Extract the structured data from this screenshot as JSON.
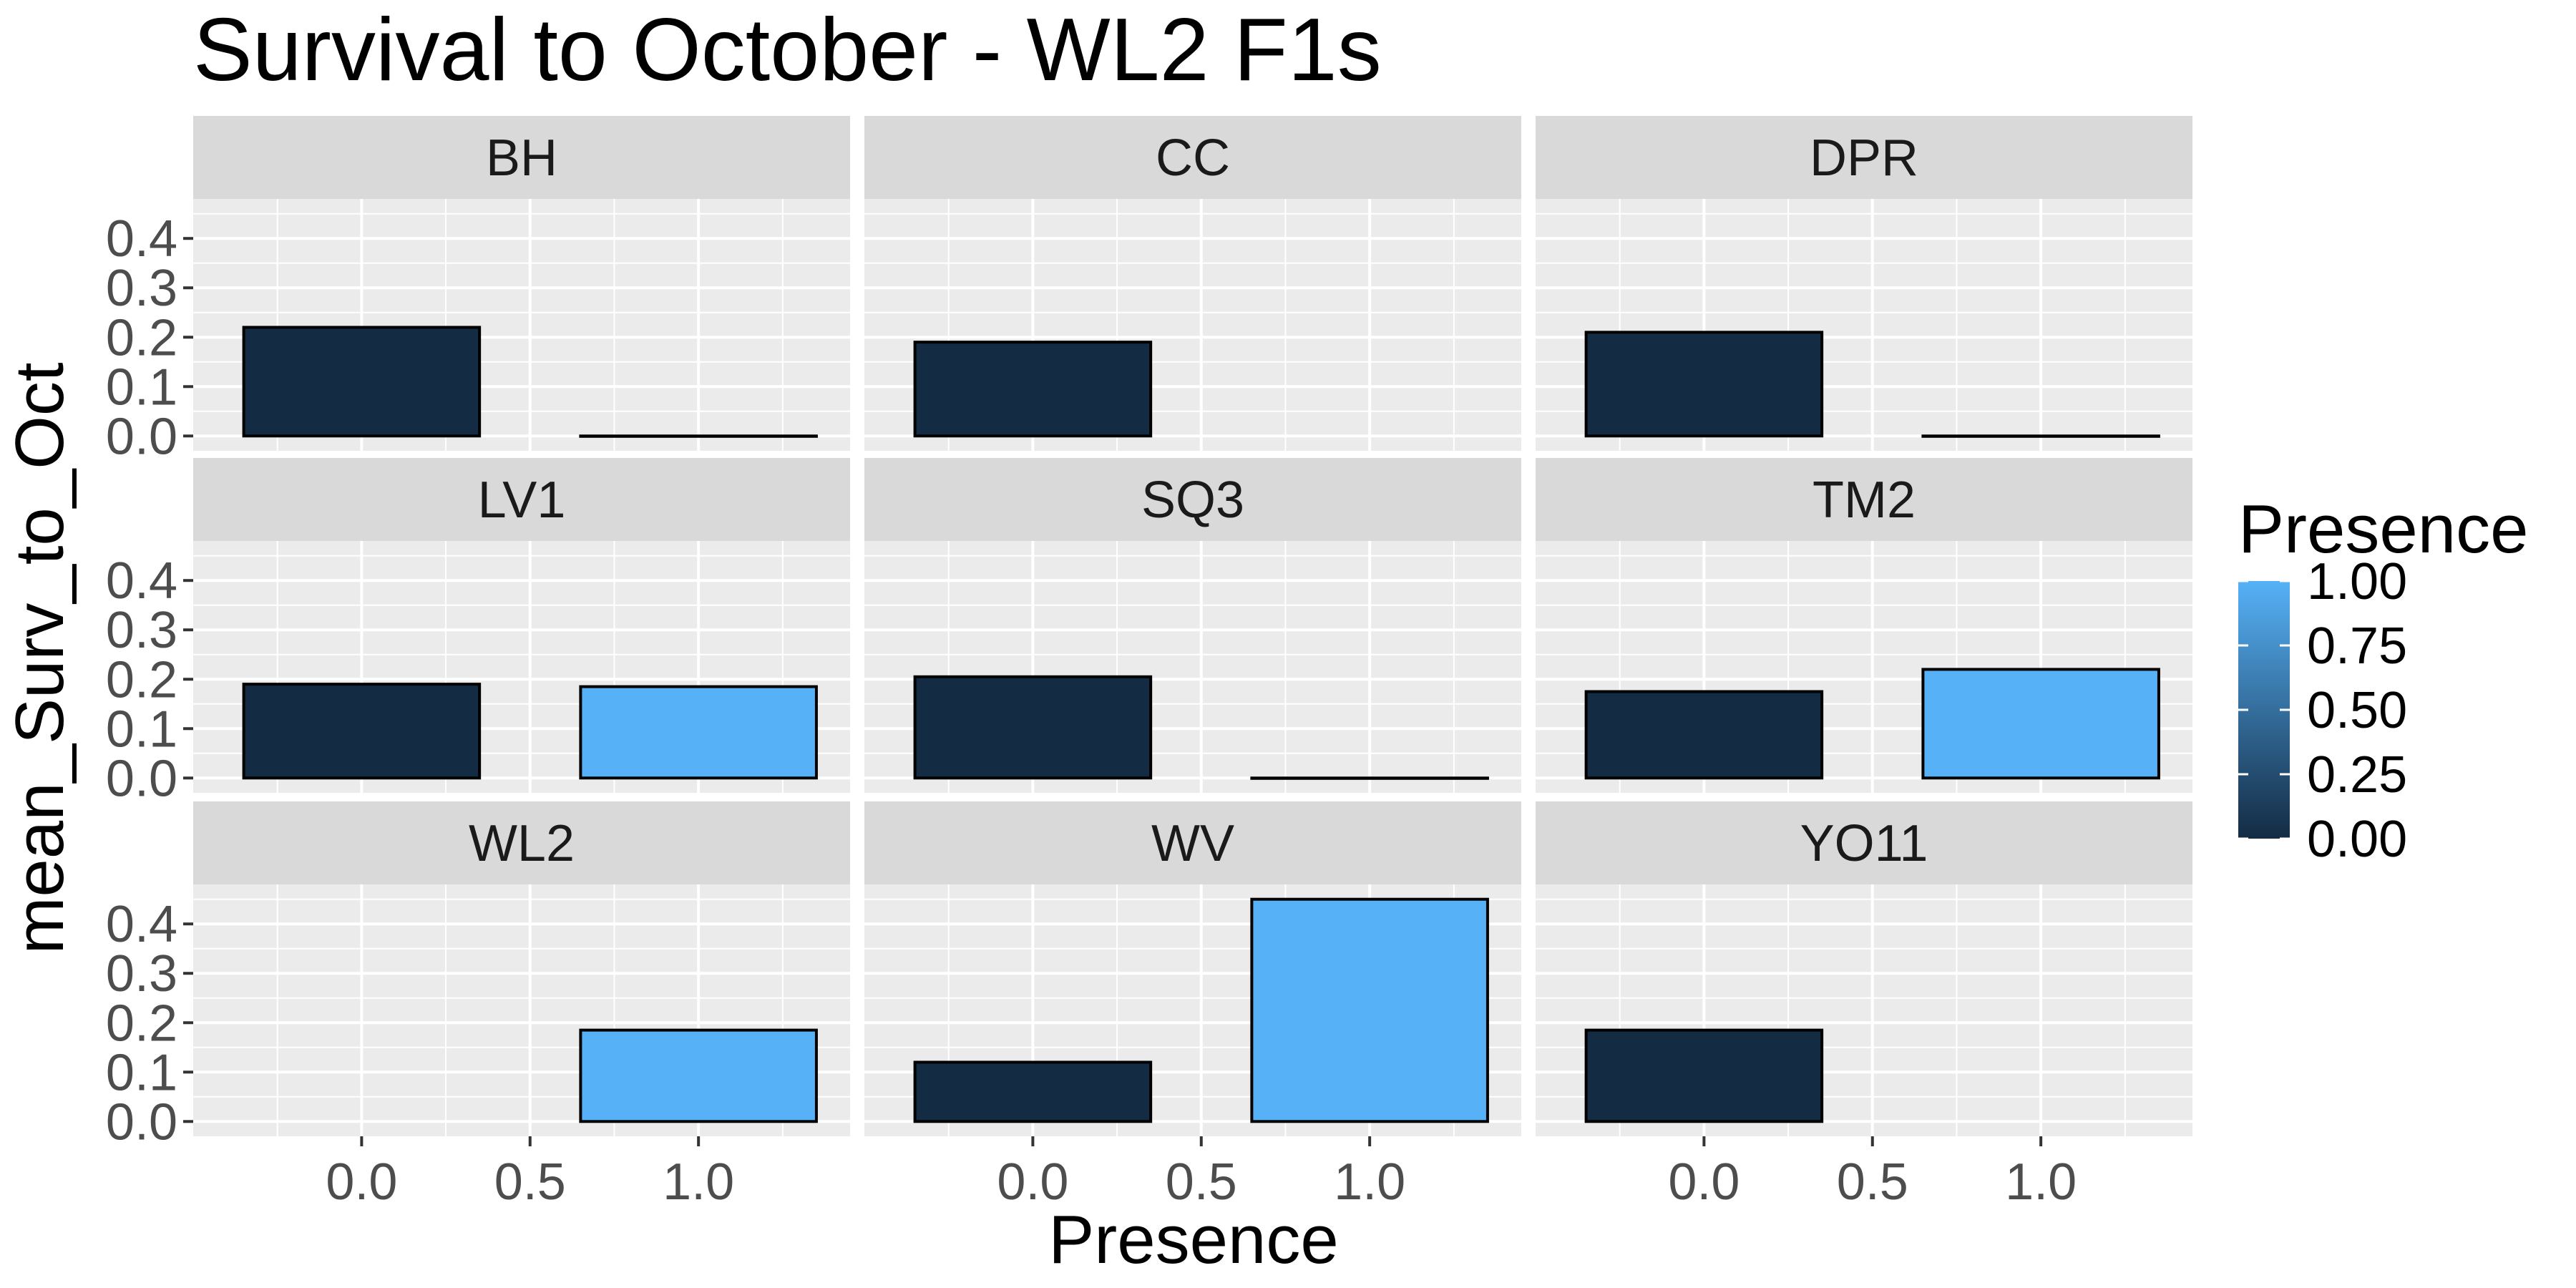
{
  "chart_data": {
    "type": "bar",
    "title": "Survival to October - WL2 F1s",
    "xlabel": "Presence",
    "ylabel": "mean_Surv_to_Oct",
    "x_ticks": [
      "0.0",
      "0.5",
      "1.0"
    ],
    "y_ticks": [
      "0.0",
      "0.1",
      "0.2",
      "0.3",
      "0.4"
    ],
    "xlim": [
      -0.5,
      1.45
    ],
    "ylim": [
      -0.03,
      0.48
    ],
    "grid": true,
    "legend": {
      "title": "Presence",
      "position": "right",
      "type": "colorbar",
      "labels": [
        "1.00",
        "0.75",
        "0.50",
        "0.25",
        "0.00"
      ],
      "low_color": "#132B43",
      "high_color": "#56B1F7"
    },
    "panels": [
      {
        "name": "BH",
        "bars": [
          {
            "x": 0,
            "value": 0.22
          },
          {
            "x": 1,
            "value": 0.0
          }
        ]
      },
      {
        "name": "CC",
        "bars": [
          {
            "x": 0,
            "value": 0.19
          }
        ]
      },
      {
        "name": "DPR",
        "bars": [
          {
            "x": 0,
            "value": 0.21
          },
          {
            "x": 1,
            "value": 0.0
          }
        ]
      },
      {
        "name": "LV1",
        "bars": [
          {
            "x": 0,
            "value": 0.19
          },
          {
            "x": 1,
            "value": 0.185
          }
        ]
      },
      {
        "name": "SQ3",
        "bars": [
          {
            "x": 0,
            "value": 0.205
          },
          {
            "x": 1,
            "value": 0.0
          }
        ]
      },
      {
        "name": "TM2",
        "bars": [
          {
            "x": 0,
            "value": 0.175
          },
          {
            "x": 1,
            "value": 0.22
          }
        ]
      },
      {
        "name": "WL2",
        "bars": [
          {
            "x": 1,
            "value": 0.185
          }
        ]
      },
      {
        "name": "WV",
        "bars": [
          {
            "x": 0,
            "value": 0.12
          },
          {
            "x": 1,
            "value": 0.45
          }
        ]
      },
      {
        "name": "YO11",
        "bars": [
          {
            "x": 0,
            "value": 0.185
          }
        ]
      }
    ]
  }
}
